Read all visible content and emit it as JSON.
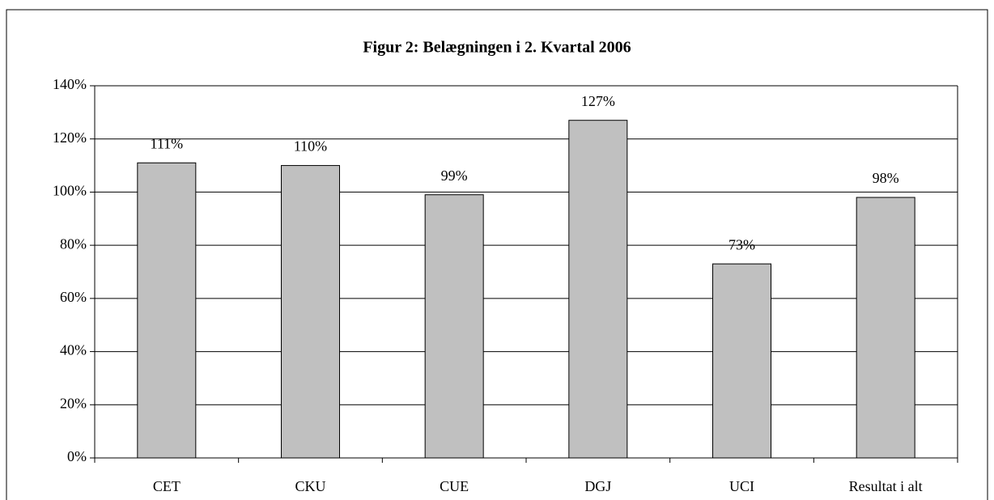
{
  "chart_data": {
    "type": "bar",
    "title": "Figur 2: Belægningen i 2. Kvartal 2006",
    "categories": [
      "CET",
      "CKU",
      "CUE",
      "DGJ",
      "UCI",
      "Resultat i alt"
    ],
    "values": [
      111,
      110,
      99,
      127,
      73,
      98
    ],
    "value_labels": [
      "111%",
      "110%",
      "99%",
      "127%",
      "73%",
      "98%"
    ],
    "color": "#c0c0c0",
    "ylim": [
      0,
      140
    ],
    "yticks": [
      {
        "value": 0,
        "label": "0%"
      },
      {
        "value": 20,
        "label": "20%"
      },
      {
        "value": 40,
        "label": "40%"
      },
      {
        "value": 60,
        "label": "60%"
      },
      {
        "value": 80,
        "label": "80%"
      },
      {
        "value": 100,
        "label": "100%"
      },
      {
        "value": 120,
        "label": "120%"
      },
      {
        "value": 140,
        "label": "140%"
      }
    ],
    "grid": true
  }
}
